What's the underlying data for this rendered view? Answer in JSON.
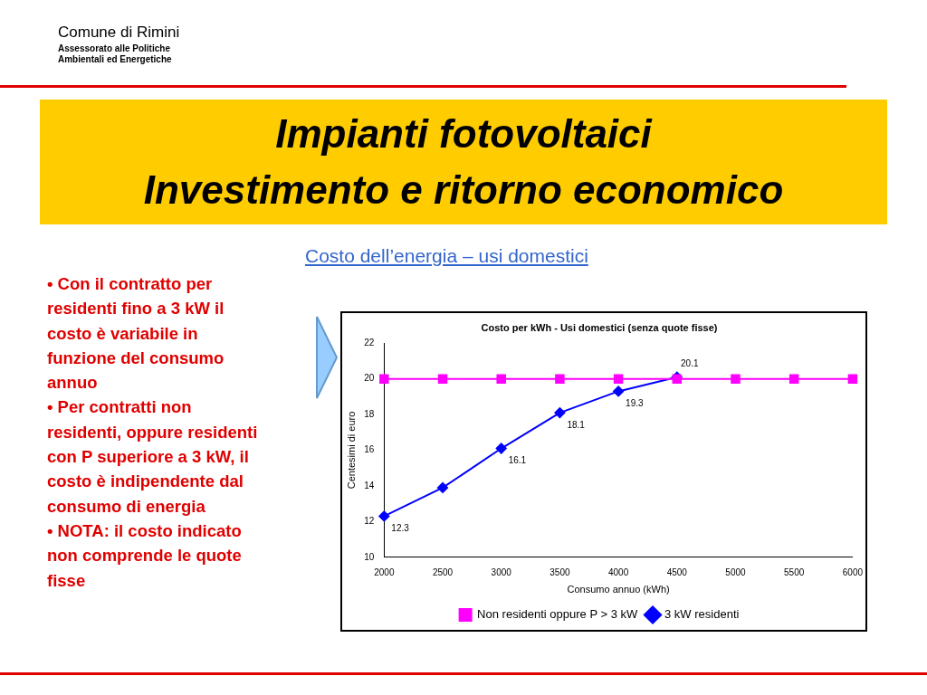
{
  "chart_data": {
    "type": "line",
    "title": "Costo per kWh - Usi domestici (senza quote fisse)",
    "xlabel": "Consumo annuo (kWh)",
    "ylabel": "Centesimi di euro",
    "categories": [
      "2000",
      "2500",
      "3000",
      "3500",
      "4000",
      "4500",
      "5000",
      "5500",
      "6000"
    ],
    "series": [
      {
        "name": "3 kW residenti",
        "color": "#0000ff",
        "marker": "diamond",
        "values": [
          12.3,
          13.9,
          16.1,
          18.1,
          19.3,
          20.1,
          null,
          null,
          null
        ],
        "value_labels": [
          "12.3",
          null,
          "16.1",
          "18.1",
          "19.3",
          "20.1",
          null,
          null,
          null
        ]
      },
      {
        "name": "Non residenti oppure P > 3 kW",
        "color": "#ff00ff",
        "marker": "square",
        "values": [
          20,
          20,
          20,
          20,
          20,
          20,
          20,
          20,
          20
        ]
      }
    ],
    "ylim": [
      10,
      22
    ],
    "yticks": [
      10,
      12,
      14,
      16,
      18,
      20,
      22
    ],
    "grid": false,
    "legend": "bottom",
    "annotations": [
      "Comune di Rimini",
      "Assessorato alle Politiche\nAmbientali ed Energetiche",
      "Impianti fotovoltaici\nInvestimento e ritorno economico",
      "Costo dell’energia –  usi domestici",
      "• Con il contratto per residenti fino a 3 kW il costo è variabile in funzione del consumo annuo\n• Per contratti non residenti, oppure residenti con P superiore a 3 kW, il costo è indipendente dal consumo di energia\n• NOTA: il costo indicato non comprende le quote fisse"
    ]
  }
}
